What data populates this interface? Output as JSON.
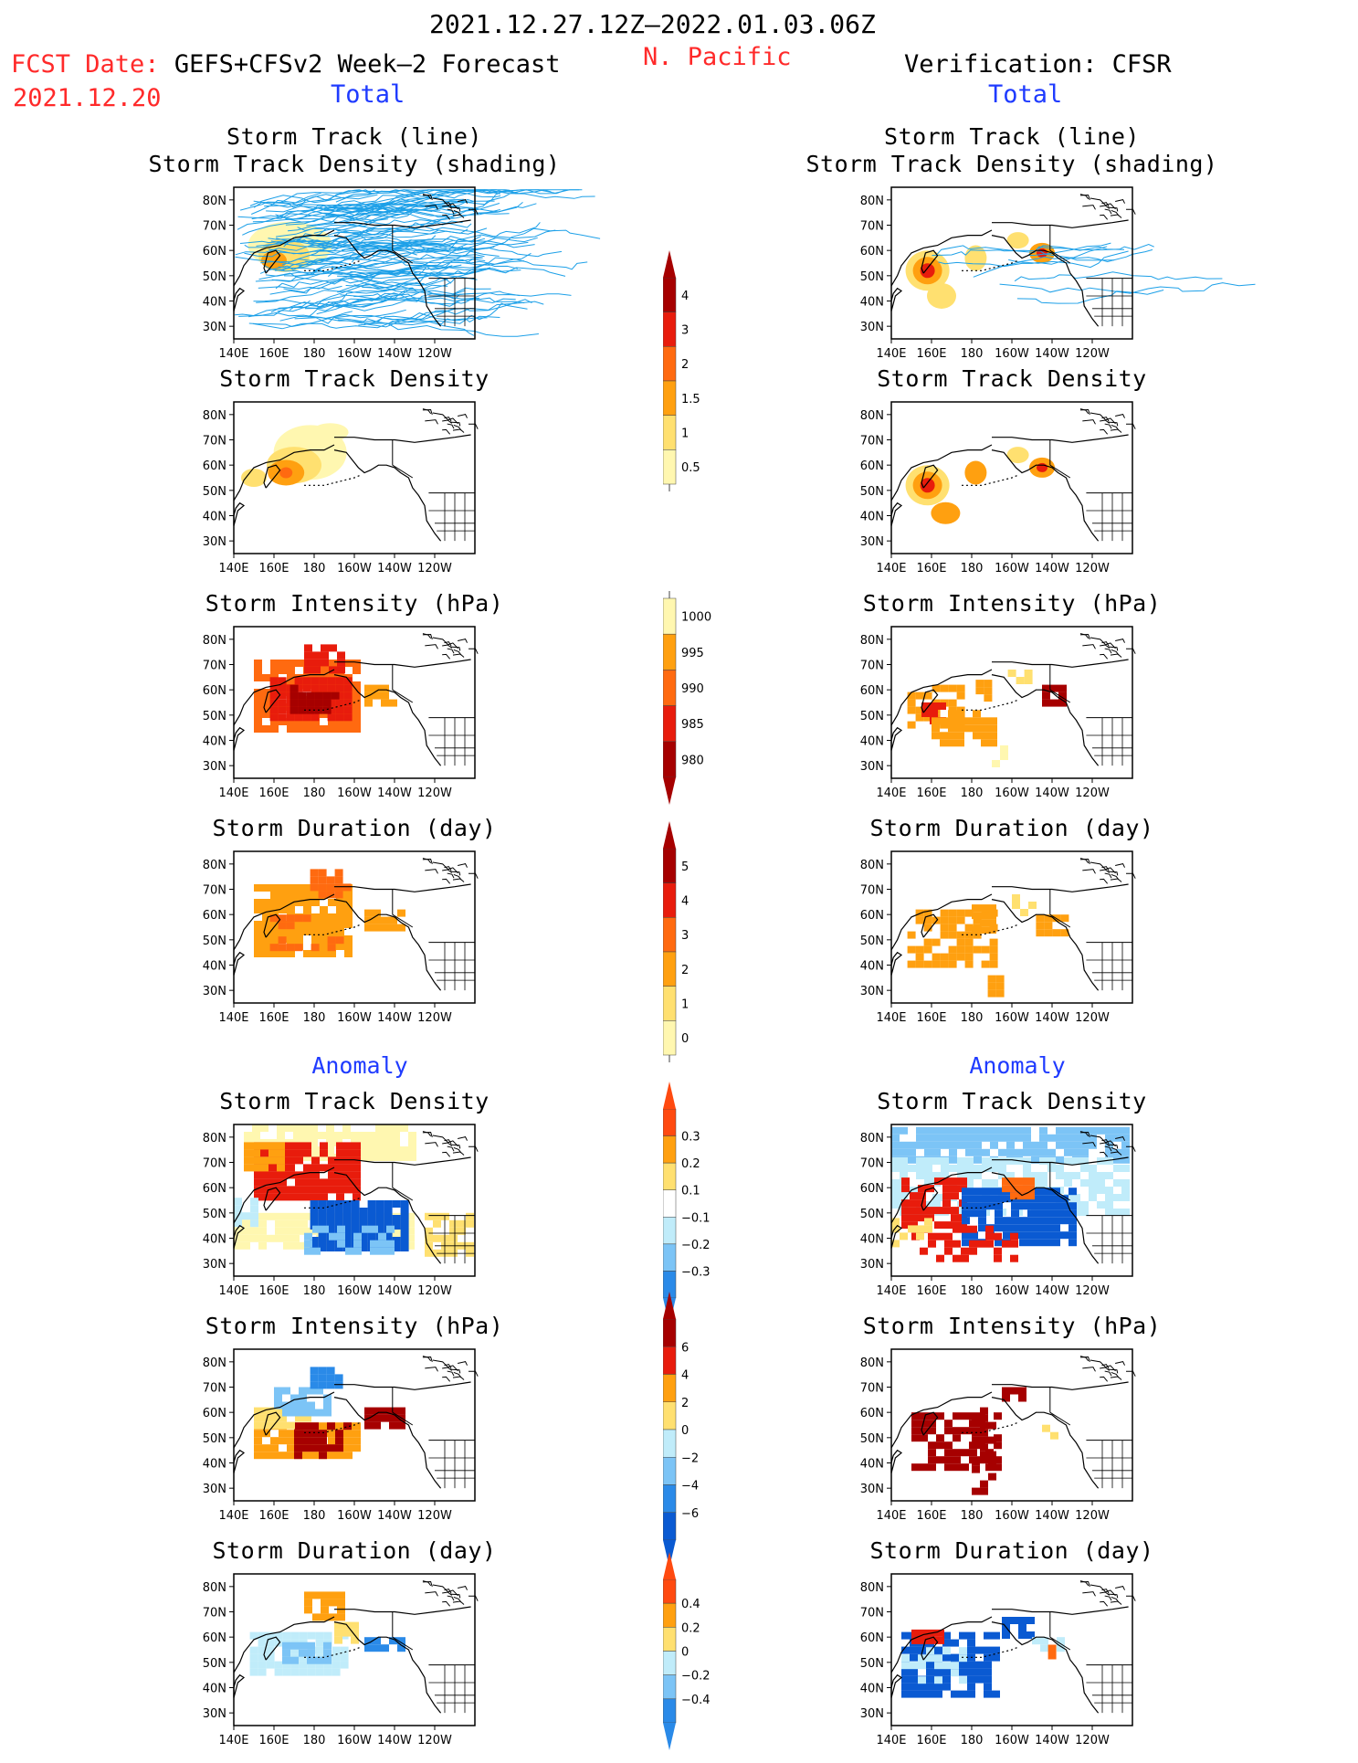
{
  "header": {
    "date_range": "2021.12.27.12Z—2022.01.03.06Z",
    "region": "N. Pacific",
    "fcst_prefix": "FCST Date:",
    "fcst_model": "GEFS+CFSv2 Week—2 Forecast",
    "fcst_date": "2021.12.20",
    "verification": "Verification: CFSR",
    "left_total": "Total",
    "right_total": "Total",
    "left_anomaly": "Anomaly",
    "right_anomaly": "Anomaly"
  },
  "titles": {
    "track_line": "Storm Track (line)",
    "track_shading": "Storm Track Density (shading)",
    "density": "Storm Track Density",
    "intensity": "Storm Intensity (hPa)",
    "duration": "Storm Duration (day)"
  },
  "colors": {
    "ltyellow": "#fff7b0",
    "yellow": "#ffe070",
    "orange": "#ffa010",
    "dkorange": "#ff6a10",
    "red": "#e81c0c",
    "dkred": "#a60000",
    "ltblue": "#c0ecfa",
    "blue1": "#7cc4f6",
    "blue2": "#2a8ae8",
    "blue3": "#0a5ad2",
    "track": "#1da0e8"
  },
  "chart_data": [
    {
      "type": "heatmap",
      "panel": "forecast_total_track",
      "title": "Storm Track (line) Storm Track Density (shading)",
      "x_ticks": [
        "140E",
        "160E",
        "180",
        "160W",
        "140W",
        "120W"
      ],
      "y_ticks": [
        "80N",
        "70N",
        "60N",
        "50N",
        "40N",
        "30N"
      ]
    },
    {
      "type": "heatmap",
      "panel": "verification_total_track",
      "title": "Storm Track (line) Storm Track Density (shading)",
      "x_ticks": [
        "140E",
        "160E",
        "180",
        "160W",
        "140W",
        "120W"
      ],
      "y_ticks": [
        "80N",
        "70N",
        "60N",
        "50N",
        "40N",
        "30N"
      ]
    },
    {
      "type": "heatmap",
      "panel": "forecast_total_density",
      "title": "Storm Track Density",
      "colorbar": {
        "levels": [
          "0.5",
          "1",
          "1.5",
          "2",
          "3",
          "4"
        ]
      }
    },
    {
      "type": "heatmap",
      "panel": "verification_total_density",
      "title": "Storm Track Density"
    },
    {
      "type": "heatmap",
      "panel": "forecast_total_intensity",
      "title": "Storm Intensity (hPa)",
      "colorbar": {
        "levels": [
          "1000",
          "995",
          "990",
          "985",
          "980"
        ]
      }
    },
    {
      "type": "heatmap",
      "panel": "verification_total_intensity",
      "title": "Storm Intensity (hPa)"
    },
    {
      "type": "heatmap",
      "panel": "forecast_total_duration",
      "title": "Storm Duration (day)",
      "colorbar": {
        "levels": [
          "5",
          "4",
          "3",
          "2",
          "1",
          "0"
        ]
      }
    },
    {
      "type": "heatmap",
      "panel": "verification_total_duration",
      "title": "Storm Duration (day)"
    },
    {
      "type": "heatmap",
      "panel": "forecast_anomaly_density",
      "title": "Storm Track Density",
      "colorbar": {
        "levels": [
          "0.3",
          "0.2",
          "0.1",
          "−0.1",
          "−0.2",
          "−0.3"
        ]
      }
    },
    {
      "type": "heatmap",
      "panel": "verification_anomaly_density",
      "title": "Storm Track Density"
    },
    {
      "type": "heatmap",
      "panel": "forecast_anomaly_intensity",
      "title": "Storm Intensity (hPa)",
      "colorbar": {
        "levels": [
          "6",
          "4",
          "2",
          "0",
          "−2",
          "−4",
          "−6"
        ]
      }
    },
    {
      "type": "heatmap",
      "panel": "verification_anomaly_intensity",
      "title": "Storm Intensity (hPa)"
    },
    {
      "type": "heatmap",
      "panel": "forecast_anomaly_duration",
      "title": "Storm Duration (day)",
      "colorbar": {
        "levels": [
          "0.4",
          "0.2",
          "0",
          "−0.2",
          "−0.4"
        ]
      }
    },
    {
      "type": "heatmap",
      "panel": "verification_anomaly_duration",
      "title": "Storm Duration (day)"
    }
  ],
  "axes": {
    "x_ticks": [
      "140E",
      "160E",
      "180",
      "160W",
      "140W",
      "120W"
    ],
    "y_ticks": [
      "80N",
      "70N",
      "60N",
      "50N",
      "40N",
      "30N"
    ]
  },
  "colorbars": [
    {
      "labels": [
        "4",
        "3",
        "2",
        "1.5",
        "1",
        "0.5"
      ],
      "colors": [
        "#a60000",
        "#e81c0c",
        "#ff6a10",
        "#ffa010",
        "#ffe070",
        "#fff7b0"
      ],
      "arrow": "top"
    },
    {
      "labels": [
        "1000",
        "995",
        "990",
        "985",
        "980"
      ],
      "colors": [
        "#fff7b0",
        "#ffa010",
        "#ff6a10",
        "#e81c0c",
        "#a60000"
      ],
      "arrow": "bottom"
    },
    {
      "labels": [
        "5",
        "4",
        "3",
        "2",
        "1",
        "0"
      ],
      "colors": [
        "#a60000",
        "#e81c0c",
        "#ff6a10",
        "#ffa010",
        "#ffe070",
        "#fff7b0"
      ],
      "arrow": "top"
    },
    {
      "labels": [
        "0.3",
        "0.2",
        "0.1",
        "−0.1",
        "−0.2",
        "−0.3"
      ],
      "colors": [
        "#ff4a10",
        "#ffa010",
        "#ffe070",
        "#ffffff",
        "#c0ecfa",
        "#7cc4f6",
        "#2a8ae8"
      ],
      "arrow": "both"
    },
    {
      "labels": [
        "6",
        "4",
        "2",
        "0",
        "−2",
        "−4",
        "−6"
      ],
      "colors": [
        "#a60000",
        "#e81c0c",
        "#ffa010",
        "#ffe070",
        "#c0ecfa",
        "#7cc4f6",
        "#2a8ae8",
        "#0a5ad2"
      ],
      "arrow": "both"
    },
    {
      "labels": [
        "0.4",
        "0.2",
        "0",
        "−0.2",
        "−0.4"
      ],
      "colors": [
        "#ff4a10",
        "#ffa010",
        "#ffe070",
        "#c0ecfa",
        "#7cc4f6",
        "#2a8ae8"
      ],
      "arrow": "both"
    }
  ]
}
